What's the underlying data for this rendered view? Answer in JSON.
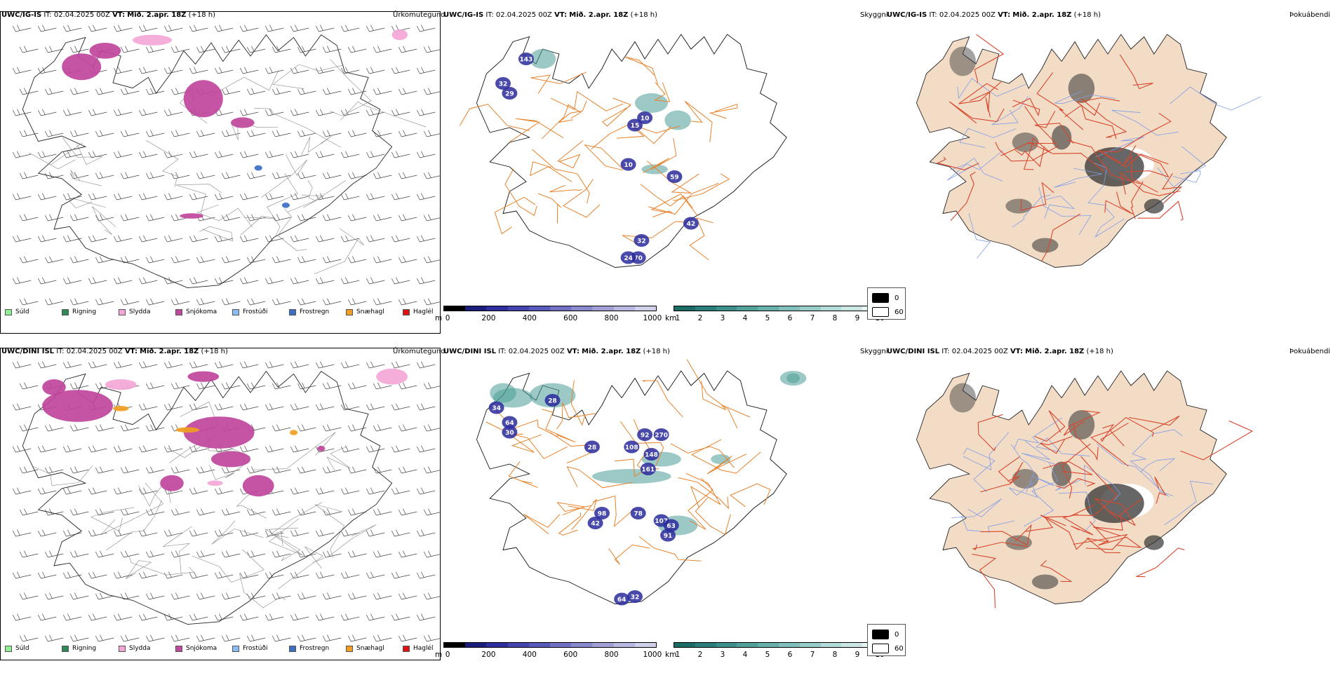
{
  "rows": [
    {
      "model": "UWC/IG-IS",
      "it_label": "IT:",
      "it_value": "02.04.2025 00Z",
      "vt_label": "VT:",
      "vt_value": "Mið. 2.apr. 18Z",
      "lead": "(+18 h)",
      "precip_title": "Úrkomutegund",
      "vis_title": "Skyggni",
      "fog_title": "Þokuábendi",
      "cloud_labels": [
        "143",
        "32",
        "29",
        "10",
        "15",
        "10",
        "59",
        "42",
        "32",
        "70",
        "24"
      ]
    },
    {
      "model": "UWC/DINI ISL",
      "it_label": "IT:",
      "it_value": "02.04.2025 00Z",
      "vt_label": "VT:",
      "vt_value": "Mið. 2.apr. 18Z",
      "lead": "(+18 h)",
      "precip_title": "Úrkomutegund",
      "vis_title": "Skyggni",
      "fog_title": "Þokuábendi",
      "cloud_labels": [
        "34",
        "28",
        "64",
        "30",
        "28",
        "92",
        "270",
        "108",
        "148",
        "161",
        "98",
        "78",
        "42",
        "107",
        "63",
        "91",
        "64",
        "32"
      ]
    }
  ],
  "precip_legend": [
    {
      "label": "Súld",
      "color": "#90ee90"
    },
    {
      "label": "Rigning",
      "color": "#2e8b57"
    },
    {
      "label": "Slydda",
      "color": "#f4a6d7"
    },
    {
      "label": "Snjókoma",
      "color": "#c0479c"
    },
    {
      "label": "Frostúði",
      "color": "#87bdf0"
    },
    {
      "label": "Frostregn",
      "color": "#3a6fc4"
    },
    {
      "label": "Snæhagl",
      "color": "#f0a020"
    },
    {
      "label": "Haglél",
      "color": "#e01010"
    }
  ],
  "cloud_scale": {
    "unit": "m",
    "ticks": [
      "0",
      "200",
      "400",
      "600",
      "800",
      "1000"
    ],
    "colors": [
      "#000000",
      "#1c1c7a",
      "#2e2e9e",
      "#4444b0",
      "#5a5abc",
      "#7070c4",
      "#8888cc",
      "#a0a0d6",
      "#b8b8e0",
      "#d0d0ea"
    ]
  },
  "vis_scale": {
    "unit": "km",
    "ticks": [
      "1",
      "2",
      "3",
      "4",
      "5",
      "6",
      "7",
      "8",
      "9",
      "10"
    ],
    "colors": [
      "#1b6b66",
      "#2b7f79",
      "#3d8f89",
      "#52a09a",
      "#68b0aa",
      "#80c0ba",
      "#98cec9",
      "#b2dcd8",
      "#cce8e5",
      "#e6f4f2"
    ]
  },
  "fog_legend": {
    "v1": "0",
    "v2": "60"
  },
  "colors": {
    "snow": "#c0479c",
    "sleet": "#f4a6d7",
    "ice_pellet": "#f0a020",
    "frz_rain": "#3a6fc4",
    "road_orange": "#e8822a",
    "land_beige": "#f3dcc6",
    "road_red": "#d8462c",
    "river_blue": "#7f9ce8",
    "cloud_blue": "#2a2a9c",
    "fog_teal": "#4a9c96"
  }
}
